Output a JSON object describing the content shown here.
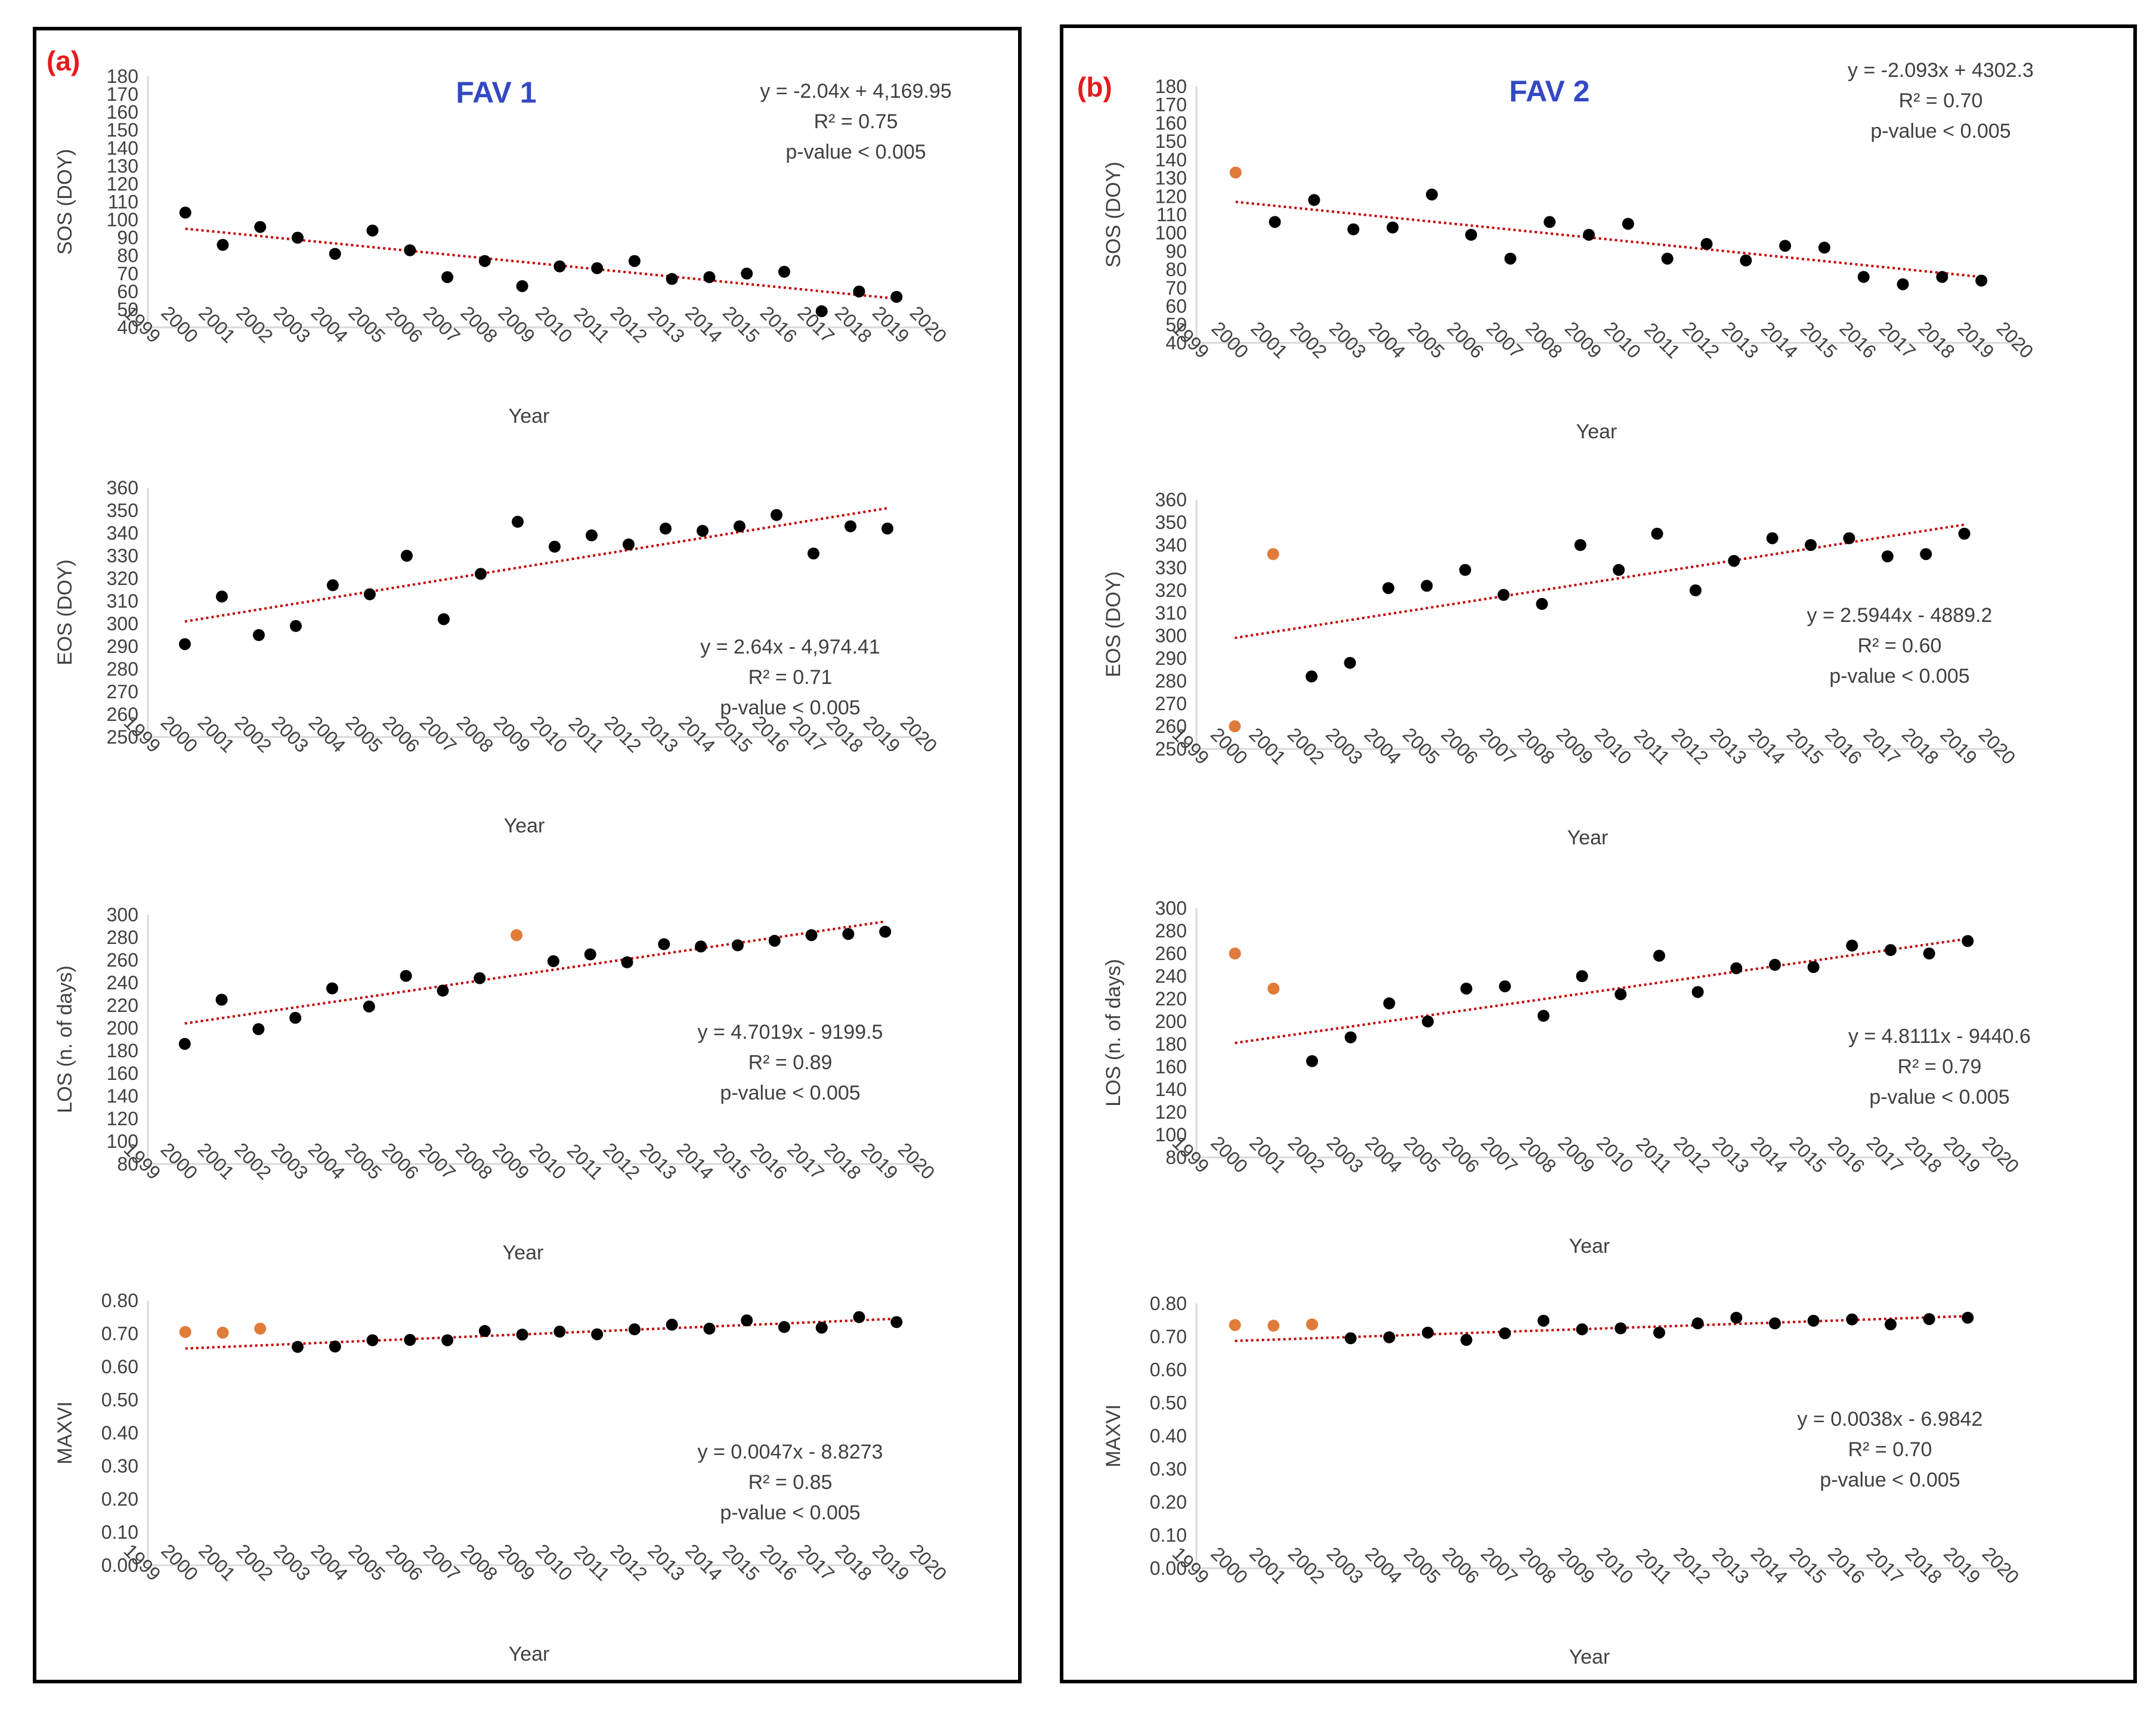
{
  "figure": {
    "panels": [
      {
        "label": "(a)",
        "heading": "FAV 1",
        "charts": [
          {
            "type": "scatter",
            "ylabel": "SOS (DOY)",
            "xlabel": "Year",
            "ylim": [
              40,
              180
            ],
            "ystep": 10,
            "ydecimals": 0,
            "xlim": [
              1999,
              2020
            ],
            "grid": false,
            "x": [
              2000,
              2001,
              2002,
              2003,
              2004,
              2005,
              2006,
              2007,
              2008,
              2009,
              2010,
              2011,
              2012,
              2013,
              2014,
              2015,
              2016,
              2017,
              2018,
              2019
            ],
            "y": [
              104,
              86,
              96,
              90,
              81,
              94,
              83,
              68,
              77,
              63,
              74,
              73,
              77,
              67,
              68,
              70,
              71,
              49,
              60,
              57
            ],
            "outliers": [],
            "trend": {
              "y_start": 95,
              "y_end": 56
            },
            "equation": "y = -2.04x + 4,169.95",
            "r2": "R² = 0.75",
            "pvalue": "p-value < 0.005"
          },
          {
            "type": "scatter",
            "ylabel": "EOS (DOY)",
            "xlabel": "Year",
            "ylim": [
              250,
              360
            ],
            "ystep": 10,
            "ydecimals": 0,
            "xlim": [
              1999,
              2020
            ],
            "grid": false,
            "x": [
              2000,
              2001,
              2002,
              2003,
              2004,
              2005,
              2006,
              2007,
              2008,
              2009,
              2010,
              2011,
              2012,
              2013,
              2014,
              2015,
              2016,
              2017,
              2018,
              2019
            ],
            "y": [
              291,
              312,
              295,
              299,
              317,
              313,
              330,
              302,
              322,
              345,
              334,
              339,
              335,
              342,
              341,
              343,
              348,
              331,
              343,
              342
            ],
            "outliers": [],
            "trend": {
              "y_start": 301,
              "y_end": 351
            },
            "equation": "y = 2.64x - 4,974.41",
            "r2": "R² = 0.71",
            "pvalue": "p-value < 0.005"
          },
          {
            "type": "scatter",
            "ylabel": "LOS (n. of days)",
            "xlabel": "Year",
            "ylim": [
              80,
              300
            ],
            "ystep": 20,
            "ydecimals": 0,
            "xlim": [
              1999,
              2020
            ],
            "grid": false,
            "x": [
              2000,
              2001,
              2002,
              2003,
              2004,
              2005,
              2006,
              2007,
              2008,
              2009,
              2010,
              2011,
              2012,
              2013,
              2014,
              2015,
              2016,
              2017,
              2018,
              2019
            ],
            "y": [
              186,
              225,
              199,
              209,
              235,
              219,
              246,
              233,
              244,
              282,
              259,
              265,
              258,
              274,
              272,
              273,
              277,
              282,
              283,
              285
            ],
            "outliers": [
              9
            ],
            "trend": {
              "y_start": 204,
              "y_end": 294
            },
            "equation": "y = 4.7019x - 9199.5",
            "r2": "R² = 0.89",
            "pvalue": "p-value < 0.005"
          },
          {
            "type": "scatter",
            "ylabel": "MAXVI",
            "xlabel": "Year",
            "ylim": [
              0,
              0.8
            ],
            "ystep": 0.1,
            "ydecimals": 2,
            "xlim": [
              1999,
              2020
            ],
            "grid": false,
            "x": [
              2000,
              2001,
              2002,
              2003,
              2004,
              2005,
              2006,
              2007,
              2008,
              2009,
              2010,
              2011,
              2012,
              2013,
              2014,
              2015,
              2016,
              2017,
              2018,
              2019
            ],
            "y": [
              0.705,
              0.703,
              0.715,
              0.66,
              0.661,
              0.68,
              0.681,
              0.68,
              0.708,
              0.697,
              0.706,
              0.698,
              0.713,
              0.727,
              0.715,
              0.74,
              0.72,
              0.718,
              0.75,
              0.735
            ],
            "outliers": [
              0,
              1,
              2
            ],
            "trend": {
              "y_start": 0.655,
              "y_end": 0.745
            },
            "equation": "y = 0.0047x - 8.8273",
            "r2": "R² = 0.85",
            "pvalue": "p-value < 0.005"
          }
        ]
      },
      {
        "label": "(b)",
        "heading": "FAV 2",
        "charts": [
          {
            "type": "scatter",
            "ylabel": "SOS (DOY)",
            "xlabel": "Year",
            "ylim": [
              40,
              180
            ],
            "ystep": 10,
            "ydecimals": 0,
            "xlim": [
              1999,
              2020
            ],
            "grid": false,
            "x": [
              2000,
              2001,
              2002,
              2003,
              2004,
              2005,
              2006,
              2007,
              2008,
              2009,
              2010,
              2011,
              2012,
              2013,
              2014,
              2015,
              2016,
              2017,
              2018,
              2019
            ],
            "y": [
              133,
              106,
              118,
              102,
              103,
              121,
              99,
              86,
              106,
              99,
              105,
              86,
              94,
              85,
              93,
              92,
              76,
              72,
              76,
              74
            ],
            "outliers": [
              0
            ],
            "trend": {
              "y_start": 117,
              "y_end": 76
            },
            "equation": "y = -2.093x + 4302.3",
            "r2": "R² = 0.70",
            "pvalue": "p-value < 0.005"
          },
          {
            "type": "scatter",
            "ylabel": "EOS (DOY)",
            "xlabel": "Year",
            "ylim": [
              250,
              360
            ],
            "ystep": 10,
            "ydecimals": 0,
            "xlim": [
              1999,
              2020
            ],
            "grid": false,
            "x": [
              2000,
              2001,
              2002,
              2003,
              2004,
              2005,
              2006,
              2007,
              2008,
              2009,
              2010,
              2011,
              2012,
              2013,
              2014,
              2015,
              2016,
              2017,
              2018,
              2019
            ],
            "y": [
              260,
              336,
              282,
              288,
              321,
              322,
              329,
              318,
              314,
              340,
              329,
              345,
              320,
              333,
              343,
              340,
              343,
              335,
              336,
              345
            ],
            "outliers": [
              0,
              1
            ],
            "trend": {
              "y_start": 299,
              "y_end": 349
            },
            "equation": "y = 2.5944x - 4889.2",
            "r2": "R² = 0.60",
            "pvalue": "p-value < 0.005"
          },
          {
            "type": "scatter",
            "ylabel": "LOS (n. of days)",
            "xlabel": "Year",
            "ylim": [
              80,
              300
            ],
            "ystep": 20,
            "ydecimals": 0,
            "xlim": [
              1999,
              2020
            ],
            "grid": false,
            "x": [
              2000,
              2001,
              2002,
              2003,
              2004,
              2005,
              2006,
              2007,
              2008,
              2009,
              2010,
              2011,
              2012,
              2013,
              2014,
              2015,
              2016,
              2017,
              2018,
              2019
            ],
            "y": [
              260,
              229,
              165,
              186,
              216,
              200,
              229,
              231,
              205,
              240,
              224,
              258,
              226,
              247,
              250,
              248,
              267,
              263,
              260,
              271
            ],
            "outliers": [
              0,
              1
            ],
            "trend": {
              "y_start": 181,
              "y_end": 273
            },
            "equation": "y = 4.8111x - 9440.6",
            "r2": "R² = 0.79",
            "pvalue": "p-value < 0.005"
          },
          {
            "type": "scatter",
            "ylabel": "MAXVI",
            "xlabel": "Year",
            "ylim": [
              0,
              0.8
            ],
            "ystep": 0.1,
            "ydecimals": 2,
            "xlim": [
              1999,
              2020
            ],
            "grid": false,
            "x": [
              2000,
              2001,
              2002,
              2003,
              2004,
              2005,
              2006,
              2007,
              2008,
              2009,
              2010,
              2011,
              2012,
              2013,
              2014,
              2015,
              2016,
              2017,
              2018,
              2019
            ],
            "y": [
              0.735,
              0.733,
              0.737,
              0.695,
              0.698,
              0.712,
              0.69,
              0.71,
              0.748,
              0.722,
              0.725,
              0.712,
              0.74,
              0.757,
              0.74,
              0.748,
              0.752,
              0.737,
              0.753,
              0.757
            ],
            "outliers": [
              0,
              1,
              2
            ],
            "trend": {
              "y_start": 0.687,
              "y_end": 0.762
            },
            "equation": "y = 0.0038x - 6.9842",
            "r2": "R² = 0.70",
            "pvalue": "p-value < 0.005"
          }
        ]
      }
    ]
  },
  "colors": {
    "point": "#000000",
    "outlier": "#E07B39",
    "trend": "#C00000",
    "axis": "#D9D9D9",
    "tick_text": "#404040",
    "panel_label": "#E41A1C",
    "heading": "#3348C4",
    "border": "#000000"
  }
}
